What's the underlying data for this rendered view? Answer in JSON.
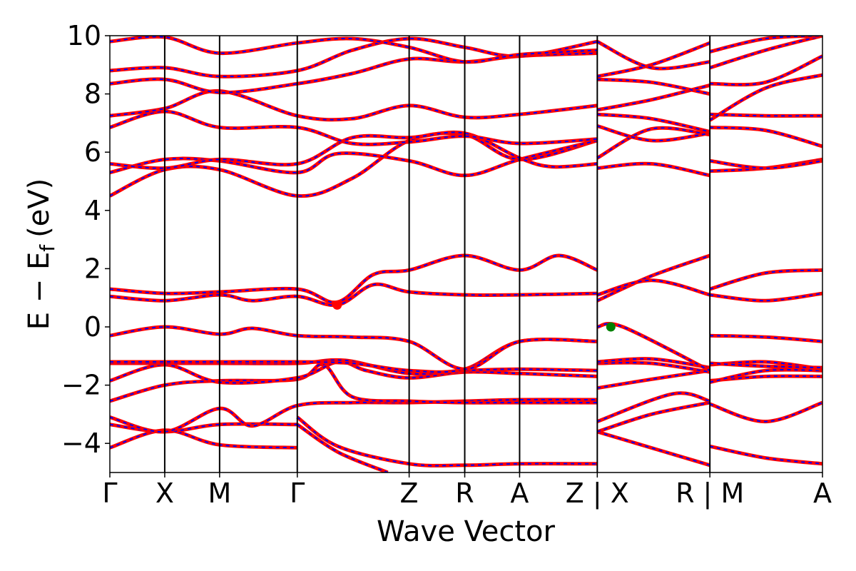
{
  "chart_data": {
    "type": "line",
    "xlabel": "Wave Vector",
    "ylabel_main": "E − E",
    "ylabel_sub": "f",
    "ylabel_unit": "(eV)",
    "ylim": [
      -5,
      10
    ],
    "y_ticks": [
      -4,
      -2,
      0,
      2,
      4,
      6,
      8,
      10
    ],
    "y_tick_labels": [
      "−4",
      "−2",
      "0",
      "2",
      "4",
      "6",
      "8",
      "10"
    ],
    "x_range": [
      0,
      1
    ],
    "k_labels": [
      {
        "k": 0.0,
        "label": "Γ"
      },
      {
        "k": 0.077,
        "label": "X"
      },
      {
        "k": 0.154,
        "label": "M"
      },
      {
        "k": 0.263,
        "label": "Γ"
      },
      {
        "k": 0.42,
        "label": "Z"
      },
      {
        "k": 0.498,
        "label": "R"
      },
      {
        "k": 0.575,
        "label": "A"
      },
      {
        "k": 0.684,
        "label": "Z | X"
      },
      {
        "k": 0.842,
        "label": "R | M"
      },
      {
        "k": 1.0,
        "label": "A"
      }
    ],
    "segment_boundaries": [
      0.077,
      0.154,
      0.263,
      0.42,
      0.498,
      0.575,
      0.684,
      0.842
    ],
    "band_style": {
      "solid_color": "#ff0000",
      "dash_color": "#0000ff"
    },
    "markers": [
      {
        "name": "CBM",
        "k": 0.319,
        "energy": 0.75,
        "color": "#ff0000"
      },
      {
        "name": "VBM",
        "k": 0.703,
        "energy": 0.0,
        "color": "#008000"
      }
    ],
    "bands": [
      {
        "name": "b1",
        "points": [
          [
            0,
            -4.15
          ],
          [
            0.077,
            -3.55
          ],
          [
            0.154,
            -4.05
          ],
          [
            0.263,
            -4.15
          ],
          [
            0.263,
            -3.1
          ],
          [
            0.32,
            -4.1
          ],
          [
            0.42,
            -4.7
          ],
          [
            0.498,
            -4.75
          ],
          [
            0.575,
            -4.7
          ],
          [
            0.684,
            -4.7
          ],
          [
            0.684,
            -3.6
          ],
          [
            0.842,
            -4.75
          ],
          [
            0.842,
            -4.1
          ],
          [
            0.92,
            -4.5
          ],
          [
            1.0,
            -4.7
          ]
        ]
      },
      {
        "name": "b2",
        "points": [
          [
            0,
            -3.35
          ],
          [
            0.077,
            -3.6
          ],
          [
            0.154,
            -3.35
          ],
          [
            0.263,
            -3.35
          ],
          [
            0.263,
            -3.35
          ],
          [
            0.32,
            -4.3
          ],
          [
            0.39,
            -5.0
          ]
        ]
      },
      {
        "name": "b3",
        "points": [
          [
            0,
            -3.1
          ],
          [
            0.077,
            -3.6
          ],
          [
            0.154,
            -2.8
          ],
          [
            0.2,
            -3.4
          ],
          [
            0.263,
            -2.7
          ],
          [
            0.34,
            -2.6
          ],
          [
            0.42,
            -2.6
          ],
          [
            0.498,
            -2.55
          ],
          [
            0.575,
            -2.5
          ],
          [
            0.684,
            -2.5
          ],
          [
            0.684,
            -3.6
          ],
          [
            0.76,
            -3.0
          ],
          [
            0.842,
            -2.6
          ],
          [
            0.842,
            -2.65
          ],
          [
            0.92,
            -3.25
          ],
          [
            1.0,
            -2.6
          ]
        ]
      },
      {
        "name": "b4",
        "points": [
          [
            0,
            -2.55
          ],
          [
            0.077,
            -2.0
          ],
          [
            0.154,
            -1.85
          ],
          [
            0.263,
            -1.8
          ],
          [
            0.3,
            -1.3
          ],
          [
            0.34,
            -2.4
          ],
          [
            0.42,
            -2.55
          ],
          [
            0.498,
            -2.6
          ],
          [
            0.575,
            -2.6
          ],
          [
            0.684,
            -2.6
          ],
          [
            0.684,
            -3.25
          ],
          [
            0.79,
            -2.3
          ],
          [
            0.842,
            -2.55
          ],
          [
            0.842,
            -1.85
          ],
          [
            0.92,
            -1.7
          ],
          [
            1.0,
            -1.7
          ]
        ]
      },
      {
        "name": "b5",
        "points": [
          [
            0,
            -1.85
          ],
          [
            0.077,
            -1.3
          ],
          [
            0.154,
            -1.9
          ],
          [
            0.263,
            -1.75
          ],
          [
            0.32,
            -1.2
          ],
          [
            0.36,
            -1.5
          ],
          [
            0.42,
            -1.75
          ],
          [
            0.498,
            -1.55
          ],
          [
            0.575,
            -1.6
          ],
          [
            0.684,
            -1.7
          ],
          [
            0.684,
            -2.1
          ],
          [
            0.76,
            -1.8
          ],
          [
            0.842,
            -1.5
          ],
          [
            0.842,
            -1.9
          ],
          [
            0.92,
            -1.5
          ],
          [
            1.0,
            -1.5
          ]
        ]
      },
      {
        "name": "b6",
        "points": [
          [
            0,
            -1.25
          ],
          [
            0.077,
            -1.25
          ],
          [
            0.154,
            -1.25
          ],
          [
            0.263,
            -1.25
          ],
          [
            0.33,
            -1.15
          ],
          [
            0.42,
            -1.6
          ],
          [
            0.498,
            -1.5
          ],
          [
            0.575,
            -1.45
          ],
          [
            0.684,
            -1.5
          ],
          [
            0.684,
            -1.25
          ],
          [
            0.76,
            -1.25
          ],
          [
            0.842,
            -1.55
          ],
          [
            0.842,
            -1.3
          ],
          [
            0.92,
            -1.2
          ],
          [
            1.0,
            -1.45
          ]
        ]
      },
      {
        "name": "b7",
        "points": [
          [
            0,
            -1.2
          ],
          [
            0.077,
            -1.2
          ],
          [
            0.154,
            -1.2
          ],
          [
            0.263,
            -1.2
          ],
          [
            0.34,
            -1.25
          ],
          [
            0.42,
            -1.5
          ],
          [
            0.498,
            -1.45
          ],
          [
            0.575,
            -0.5
          ],
          [
            0.684,
            -0.5
          ],
          [
            0.684,
            -1.2
          ],
          [
            0.76,
            -1.1
          ],
          [
            0.842,
            -1.4
          ],
          [
            0.842,
            -1.25
          ],
          [
            0.92,
            -1.35
          ],
          [
            1.0,
            -1.4
          ]
        ]
      },
      {
        "name": "b8",
        "points": [
          [
            0,
            -0.3
          ],
          [
            0.077,
            0.0
          ],
          [
            0.154,
            -0.25
          ],
          [
            0.2,
            -0.05
          ],
          [
            0.263,
            -0.3
          ],
          [
            0.34,
            -0.35
          ],
          [
            0.42,
            -0.5
          ],
          [
            0.498,
            -1.45
          ],
          [
            0.575,
            -0.5
          ],
          [
            0.684,
            -0.5
          ],
          [
            0.684,
            0.0
          ],
          [
            0.72,
            0.0
          ],
          [
            0.842,
            -1.5
          ],
          [
            0.842,
            -0.3
          ],
          [
            0.92,
            -0.35
          ],
          [
            1.0,
            -0.5
          ]
        ]
      },
      {
        "name": "b9",
        "points": [
          [
            0,
            1.05
          ],
          [
            0.077,
            0.9
          ],
          [
            0.154,
            1.1
          ],
          [
            0.2,
            0.9
          ],
          [
            0.263,
            1.05
          ],
          [
            0.319,
            0.75
          ],
          [
            0.37,
            1.45
          ],
          [
            0.42,
            1.2
          ],
          [
            0.498,
            1.1
          ],
          [
            0.575,
            1.1
          ],
          [
            0.684,
            1.15
          ],
          [
            0.684,
            0.9
          ],
          [
            0.76,
            1.75
          ],
          [
            0.842,
            2.45
          ],
          [
            0.842,
            1.1
          ],
          [
            0.92,
            0.9
          ],
          [
            1.0,
            1.15
          ]
        ]
      },
      {
        "name": "b10",
        "points": [
          [
            0,
            1.3
          ],
          [
            0.077,
            1.15
          ],
          [
            0.154,
            1.2
          ],
          [
            0.263,
            1.3
          ],
          [
            0.319,
            0.85
          ],
          [
            0.37,
            1.8
          ],
          [
            0.42,
            1.95
          ],
          [
            0.498,
            2.45
          ],
          [
            0.575,
            1.95
          ],
          [
            0.63,
            2.45
          ],
          [
            0.684,
            1.95
          ],
          [
            0.684,
            1.1
          ],
          [
            0.76,
            1.6
          ],
          [
            0.842,
            1.1
          ],
          [
            0.842,
            1.3
          ],
          [
            0.92,
            1.85
          ],
          [
            1.0,
            1.95
          ]
        ]
      },
      {
        "name": "b11",
        "points": [
          [
            0,
            4.5
          ],
          [
            0.077,
            5.4
          ],
          [
            0.154,
            5.4
          ],
          [
            0.263,
            4.5
          ],
          [
            0.34,
            5.1
          ],
          [
            0.42,
            6.4
          ],
          [
            0.498,
            6.6
          ],
          [
            0.575,
            5.75
          ],
          [
            0.684,
            6.4
          ],
          [
            0.684,
            5.45
          ],
          [
            0.76,
            5.6
          ],
          [
            0.842,
            5.2
          ],
          [
            0.842,
            5.35
          ],
          [
            0.92,
            5.45
          ],
          [
            1.0,
            5.75
          ]
        ]
      },
      {
        "name": "b12",
        "points": [
          [
            0,
            5.3
          ],
          [
            0.077,
            5.75
          ],
          [
            0.154,
            5.7
          ],
          [
            0.263,
            5.3
          ],
          [
            0.32,
            5.95
          ],
          [
            0.42,
            5.7
          ],
          [
            0.498,
            5.2
          ],
          [
            0.575,
            5.75
          ],
          [
            0.684,
            6.4
          ],
          [
            0.684,
            5.8
          ],
          [
            0.76,
            6.8
          ],
          [
            0.842,
            6.6
          ],
          [
            0.842,
            5.7
          ],
          [
            0.92,
            5.45
          ],
          [
            1.0,
            5.7
          ]
        ]
      },
      {
        "name": "b13",
        "points": [
          [
            0,
            5.6
          ],
          [
            0.077,
            5.45
          ],
          [
            0.154,
            5.75
          ],
          [
            0.263,
            5.6
          ],
          [
            0.34,
            6.5
          ],
          [
            0.42,
            6.5
          ],
          [
            0.498,
            6.65
          ],
          [
            0.575,
            5.8
          ],
          [
            0.62,
            5.5
          ],
          [
            0.684,
            5.6
          ],
          [
            0.684,
            6.9
          ],
          [
            0.76,
            6.4
          ],
          [
            0.842,
            6.65
          ],
          [
            0.842,
            6.85
          ],
          [
            0.92,
            6.75
          ],
          [
            1.0,
            6.2
          ]
        ]
      },
      {
        "name": "b14",
        "points": [
          [
            0,
            6.85
          ],
          [
            0.077,
            7.4
          ],
          [
            0.154,
            6.85
          ],
          [
            0.263,
            6.85
          ],
          [
            0.34,
            6.3
          ],
          [
            0.42,
            6.35
          ],
          [
            0.498,
            6.55
          ],
          [
            0.575,
            6.3
          ],
          [
            0.684,
            6.45
          ],
          [
            0.684,
            7.3
          ],
          [
            0.76,
            7.15
          ],
          [
            0.842,
            6.7
          ],
          [
            0.842,
            7.3
          ],
          [
            0.92,
            7.25
          ],
          [
            1.0,
            7.25
          ]
        ]
      },
      {
        "name": "b15",
        "points": [
          [
            0,
            7.25
          ],
          [
            0.077,
            7.5
          ],
          [
            0.154,
            8.1
          ],
          [
            0.263,
            7.25
          ],
          [
            0.34,
            7.15
          ],
          [
            0.42,
            7.6
          ],
          [
            0.498,
            7.2
          ],
          [
            0.575,
            7.3
          ],
          [
            0.684,
            7.6
          ],
          [
            0.684,
            7.45
          ],
          [
            0.76,
            7.8
          ],
          [
            0.842,
            8.3
          ],
          [
            0.842,
            7.1
          ],
          [
            0.92,
            8.2
          ],
          [
            1.0,
            8.65
          ]
        ]
      },
      {
        "name": "b16",
        "points": [
          [
            0,
            8.35
          ],
          [
            0.077,
            8.5
          ],
          [
            0.154,
            8.05
          ],
          [
            0.263,
            8.35
          ],
          [
            0.34,
            8.7
          ],
          [
            0.42,
            9.2
          ],
          [
            0.498,
            9.1
          ],
          [
            0.575,
            9.3
          ],
          [
            0.684,
            9.4
          ],
          [
            0.684,
            8.5
          ],
          [
            0.76,
            8.4
          ],
          [
            0.842,
            8.0
          ],
          [
            0.842,
            8.35
          ],
          [
            0.92,
            8.4
          ],
          [
            1.0,
            9.3
          ]
        ]
      },
      {
        "name": "b17",
        "points": [
          [
            0,
            8.8
          ],
          [
            0.077,
            8.9
          ],
          [
            0.154,
            8.6
          ],
          [
            0.263,
            8.8
          ],
          [
            0.34,
            9.5
          ],
          [
            0.42,
            9.9
          ],
          [
            0.498,
            9.6
          ],
          [
            0.575,
            9.3
          ],
          [
            0.684,
            9.8
          ],
          [
            0.684,
            8.6
          ],
          [
            0.76,
            9.0
          ],
          [
            0.842,
            9.75
          ],
          [
            0.842,
            8.9
          ],
          [
            0.92,
            9.5
          ],
          [
            1.0,
            10.0
          ]
        ]
      },
      {
        "name": "b18",
        "points": [
          [
            0,
            9.8
          ],
          [
            0.077,
            9.95
          ],
          [
            0.154,
            9.4
          ],
          [
            0.263,
            9.75
          ],
          [
            0.34,
            9.9
          ],
          [
            0.42,
            9.6
          ],
          [
            0.498,
            9.1
          ],
          [
            0.575,
            9.35
          ],
          [
            0.684,
            9.5
          ],
          [
            0.684,
            9.8
          ],
          [
            0.76,
            8.9
          ],
          [
            0.842,
            9.1
          ],
          [
            0.842,
            9.45
          ],
          [
            0.92,
            9.9
          ],
          [
            1.0,
            10.0
          ]
        ]
      }
    ]
  }
}
